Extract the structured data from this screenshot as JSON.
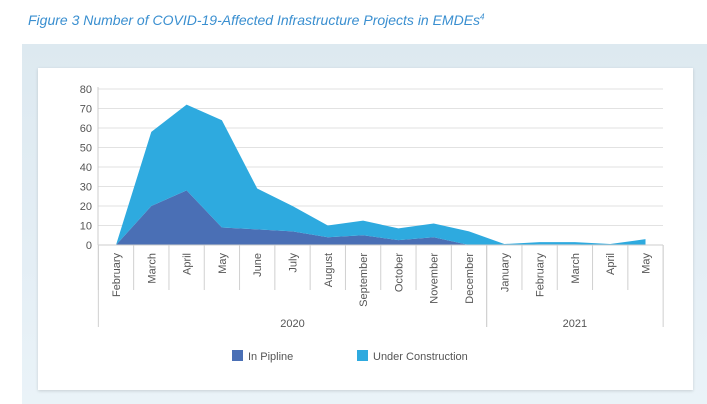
{
  "figure_title": "Figure 3 Number of COVID-19-Affected Infrastructure Projects in EMDEs",
  "figure_footnote": "4",
  "chart_data": {
    "type": "area",
    "stacked": true,
    "categories": [
      "February",
      "March",
      "April",
      "May",
      "June",
      "July",
      "August",
      "September",
      "October",
      "November",
      "December",
      "January",
      "February",
      "March",
      "April",
      "May"
    ],
    "category_groups": [
      {
        "label": "2020",
        "count": 11
      },
      {
        "label": "2021",
        "count": 5
      }
    ],
    "series": [
      {
        "name": "In Pipline",
        "color": "#4a6fb5",
        "values": [
          0,
          20,
          28,
          9,
          8,
          7,
          4,
          5,
          2.5,
          4,
          0,
          0,
          0.3,
          0.3,
          0,
          0
        ]
      },
      {
        "name": "Under Construction",
        "color": "#2eaadf",
        "values": [
          0,
          38,
          44,
          55,
          21,
          13,
          6,
          7.5,
          6,
          7,
          7,
          0.5,
          1.2,
          1.2,
          0.5,
          3
        ]
      }
    ],
    "yticks": [
      0,
      10,
      20,
      30,
      40,
      50,
      60,
      70,
      80
    ],
    "ylim": [
      0,
      80
    ],
    "grid": true,
    "legend_position": "bottom"
  }
}
